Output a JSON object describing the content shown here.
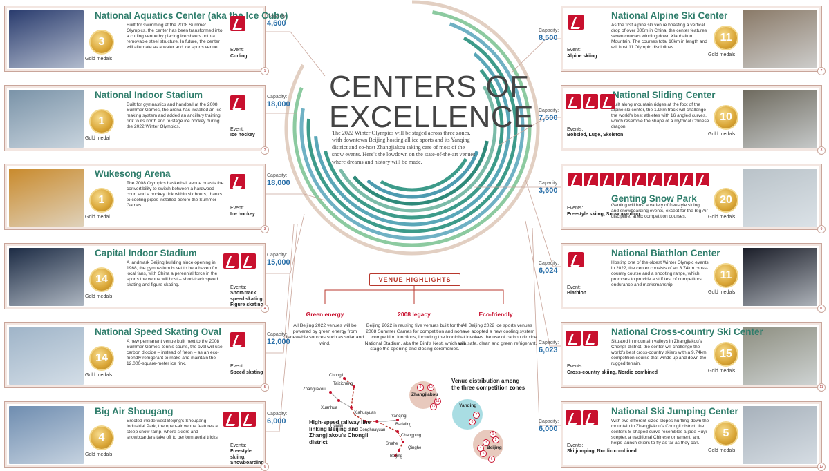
{
  "header": {
    "title_line1": "CENTERS OF",
    "title_line2": "EXCELLENCE",
    "intro": "The 2022 Winter Olympics will be staged across three zones, with downtown Beijing hosting all ice sports and its Yanqing district and co-host Zhangjiakou taking care of most of the snow events. Here's the lowdown on the state-of-the-art venues where dreams and history will be made."
  },
  "capacity_label": "Capacity:",
  "venues_left": [
    {
      "name": "National Aquatics Center (aka the Ice Cube)",
      "medals": "3",
      "medal_label": "Gold medals",
      "desc": "Built for swimming at the 2008 Summer Olympics, the center has been transformed into a curling venue by placing ice sheets onto a removable steel structure. In future, the center will alternate as a water and ice sports venue.",
      "event_label": "Event:",
      "events": "Curling",
      "capacity": "4,600",
      "index": "1",
      "photo": "#2a3c6e",
      "icons": 1
    },
    {
      "name": "National Indoor Stadium",
      "medals": "1",
      "medal_label": "Gold medal",
      "desc": "Built for gymnastics and handball at the 2008 Summer Games, the arena has installed an ice-making system and added an ancillary training rink to its north end to stage ice hockey during the 2022 Winter Olympics.",
      "event_label": "Event:",
      "events": "Ice hockey",
      "capacity": "18,000",
      "index": "2",
      "photo": "#7a93a8",
      "icons": 1
    },
    {
      "name": "Wukesong Arena",
      "medals": "1",
      "medal_label": "Gold medal",
      "desc": "The 2008 Olympics basketball venue boasts the convertibility to switch between a hardwood court and a hockey rink within six hours, thanks to cooling pipes installed before the Summer Games.",
      "event_label": "Event:",
      "events": "Ice hockey",
      "capacity": "18,000",
      "index": "3",
      "photo": "#c98a2c",
      "icons": 1
    },
    {
      "name": "Capital Indoor Stadium",
      "medals": "14",
      "medal_label": "Gold medals",
      "desc": "A landmark Beijing building since opening in 1968, the gymnasium is set to be a haven for local fans, with China a perennial force in the sports the venue will host – short-track speed skating and figure skating.",
      "event_label": "Events:",
      "events": "Short-track speed skating, Figure skating",
      "capacity": "15,000",
      "index": "4",
      "photo": "#1c2b44",
      "icons": 2
    },
    {
      "name": "National Speed Skating Oval",
      "medals": "14",
      "medal_label": "Gold medals",
      "desc": "A new permanent venue built next to the 2008 Summer Games' tennis courts, the oval will use carbon dioxide – instead of freon – as an eco-friendly refrigerant to make and maintain the 12,000-square-meter ice rink.",
      "event_label": "Event:",
      "events": "Speed skating",
      "capacity": "12,000",
      "index": "5",
      "photo": "#9fb4c8",
      "icons": 1
    },
    {
      "name": "Big Air Shougang",
      "medals": "4",
      "medal_label": "Gold medals",
      "desc": "Erected inside west Beijing's Shougang Industrial Park, the open-air venue features a steep snow ramp, where skiers and snowboarders take off to perform aerial tricks.",
      "event_label": "Events:",
      "events": "Freestyle skiing, Snowboarding",
      "capacity": "6,000",
      "index": "6",
      "photo": "#6f8db0",
      "icons": 2
    }
  ],
  "venues_right": [
    {
      "name": "National Alpine Ski Center",
      "medals": "11",
      "medal_label": "Gold medals",
      "desc": "As the first alpine ski venue boasting a vertical drop of over 800m in China, the center features seven courses winding down Xiaohaituo Mountain. The courses total 10km in length and will host 11 Olympic disciplines.",
      "event_label": "Event:",
      "events": "Alpine skiing",
      "capacity": "8,500",
      "index": "7",
      "photo": "#8a7a68",
      "icons": 1
    },
    {
      "name": "National Sliding Center",
      "medals": "10",
      "medal_label": "Gold medals",
      "desc": "Built along mountain ridges at the foot of the alpine ski center, the 1.9km track will challenge the world's best athletes with 16 angled curves, which resemble the shape of a mythical Chinese dragon.",
      "event_label": "Events:",
      "events": "Bobsled, Luge, Skeleton",
      "capacity": "7,500",
      "index": "8",
      "photo": "#6e6a5e",
      "icons": 3
    },
    {
      "name": "Genting Snow Park",
      "medals": "20",
      "medal_label": "Gold medals",
      "desc": "Genting will host a variety of freestyle skiing and snowboarding events, except for the Big Air discipline, at six competition courses.",
      "event_label": "Events:",
      "events": "Freestyle skiing, Snowboarding",
      "capacity": "3,600",
      "index": "9",
      "photo": "#b9c2c8",
      "icons": 9
    },
    {
      "name": "National Biathlon Center",
      "medals": "11",
      "medal_label": "Gold medals",
      "desc": "Hosting one of the oldest Winter Olympic events in 2022, the center consists of an 8.74km cross-country course and a shooting range, which promises to provide a stiff test of competitors' endurance and marksmanship.",
      "event_label": "Event:",
      "events": "Biathlon",
      "capacity": "6,024",
      "index": "10",
      "photo": "#1a1d28",
      "icons": 1
    },
    {
      "name": "National Cross-country Ski Center",
      "medals": "15",
      "medal_label": "Gold medals",
      "desc": "Situated in mountain valleys in Zhangjiakou's Chongli district, the center will challenge the world's best cross-country skiers with a 9.74km competition course that winds up and down the rugged terrain.",
      "event_label": "Events:",
      "events": "Cross-country skiing, Nordic combined",
      "capacity": "6,023",
      "index": "11",
      "photo": "#8d8e80",
      "icons": 2
    },
    {
      "name": "National Ski Jumping Center",
      "medals": "5",
      "medal_label": "Gold medals",
      "desc": "With two different-sized slopes hurtling down the mountain in Zhangjiakou's Chongli district, the center's S-shaped curve resembles a jade Ruyi scepter, a traditional Chinese ornament, and helps launch skiers to fly as far as they can.",
      "event_label": "Events:",
      "events": "Ski jumping, Nordic combined",
      "capacity": "6,000",
      "index": "12",
      "photo": "#a7b1bb",
      "icons": 2
    }
  ],
  "highlights": {
    "heading": "VENUE HIGHLIGHTS",
    "columns": [
      {
        "title": "Green energy",
        "text": "All Beijing 2022 venues will be powered by green energy from renewable sources such as solar and wind."
      },
      {
        "title": "2008 legacy",
        "text": "Beijing 2022 is reusing five venues built for the 2008 Summer Games for competition and non-competition functions, including the iconic National Stadium, aka the Bird's Nest, which will stage the opening and closing ceremonies."
      },
      {
        "title": "Eco-friendly",
        "text": "All Beijing 2022 ice sports venues have adopted a new cooling system that involves the use of carbon dioxide as a safe, clean and green refrigerant."
      }
    ]
  },
  "railway": {
    "caption": "High-speed railway line linking Beijing and Zhangjiakou's Chongli district",
    "stations": [
      "Chongli",
      "Taizicheng",
      "Zhangjiakou",
      "Xuanhua",
      "Xiahuayuan",
      "Huailai",
      "Donghuayuan",
      "Yanqing",
      "Badaling",
      "Changping",
      "Qinghe",
      "Shahe",
      "Beijing"
    ]
  },
  "zones": {
    "caption": "Venue distribution among the three competition zones",
    "names": [
      "Zhangjiakou",
      "Yanqing",
      "Beijing"
    ],
    "zhangjiakou_nums": [
      "9",
      "10",
      "11",
      "12"
    ],
    "yanqing_nums": [
      "7",
      "8"
    ],
    "beijing_nums": [
      "1",
      "2",
      "3",
      "4",
      "5",
      "6"
    ]
  },
  "colors": {
    "accent_red": "#c8102e",
    "title_green": "#2f7d6b",
    "capacity_blue": "#2a6fa8",
    "ring_teal": "#3d9b8a",
    "ring_tan": "#d8b9a8"
  }
}
